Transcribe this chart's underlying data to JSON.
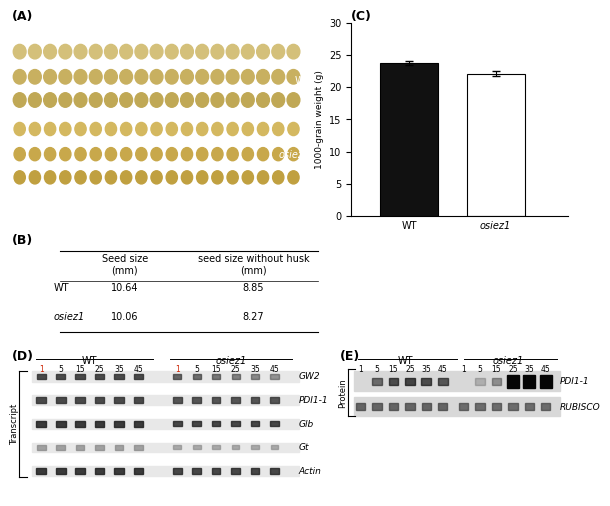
{
  "panel_C": {
    "categories": [
      "WT",
      "osiez1"
    ],
    "values": [
      23.8,
      22.1
    ],
    "errors": [
      0.3,
      0.4
    ],
    "bar_colors": [
      "#111111",
      "#ffffff"
    ],
    "ylabel": "1000-grain weight (g)",
    "ylim": [
      0,
      30
    ],
    "yticks": [
      0,
      5,
      10,
      15,
      20,
      25,
      30
    ],
    "title": "(C)"
  },
  "panel_B": {
    "title": "(B)",
    "col1": "Seed size\n(mm)",
    "col2": "seed size without husk\n(mm)",
    "rows": [
      {
        "label": "WT",
        "v1": "10.64",
        "v2": "8.85",
        "italic": false
      },
      {
        "label": "osiez1",
        "v1": "10.06",
        "v2": "8.27",
        "italic": true
      }
    ]
  },
  "panel_D": {
    "title": "(D)",
    "wt_label": "WT",
    "mut_label": "osiez1",
    "timepoints": [
      "1",
      "5",
      "15",
      "25",
      "35",
      "45"
    ],
    "genes": [
      "GW2",
      "PDI1-1",
      "Glb",
      "Gt",
      "Actin"
    ],
    "y_label": "Transcript"
  },
  "panel_E": {
    "title": "(E)",
    "wt_label": "WT",
    "mut_label": "osiez1",
    "timepoints": [
      "1",
      "5",
      "15",
      "25",
      "35",
      "45"
    ],
    "proteins": [
      "PDI1-1",
      "RUBISCO"
    ],
    "y_label": "Protein"
  },
  "panel_A": {
    "title": "(A)",
    "wt_label": "WT",
    "mut_label": "osiez1"
  }
}
